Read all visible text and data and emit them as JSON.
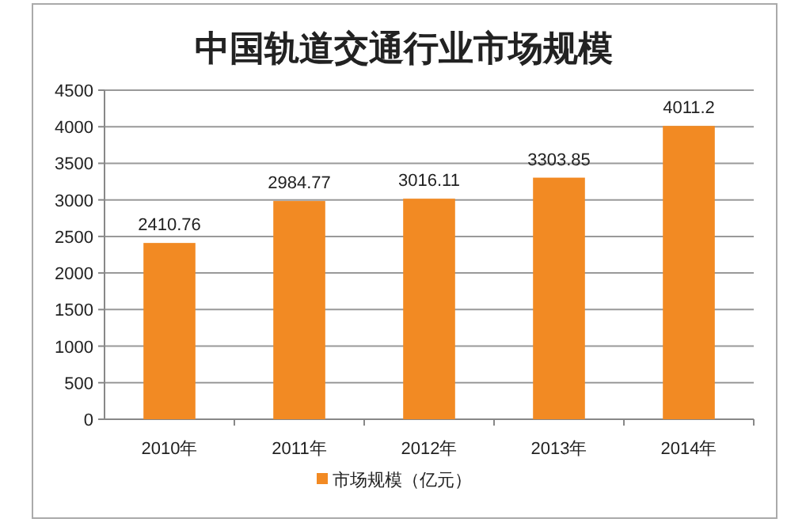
{
  "chart_data": {
    "type": "bar",
    "title": "中国轨道交通行业市场规模",
    "categories": [
      "2010年",
      "2011年",
      "2012年",
      "2013年",
      "2014年"
    ],
    "series": [
      {
        "name": "市场规模（亿元）",
        "color": "#f28a23",
        "values": [
          2410.76,
          2984.77,
          3016.11,
          3303.85,
          4011.2
        ]
      }
    ],
    "ylim": [
      0,
      4500
    ],
    "yticks": [
      0,
      500,
      1000,
      1500,
      2000,
      2500,
      3000,
      3500,
      4000,
      4500
    ],
    "grid": "y",
    "data_labels": true,
    "legend": "bottom"
  }
}
